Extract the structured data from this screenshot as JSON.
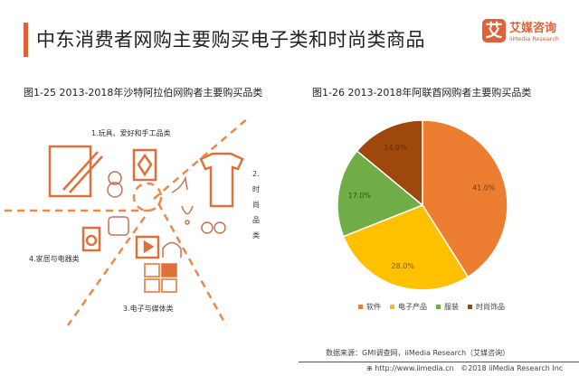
{
  "header": {
    "title": "中东消费者网购主要购买电子类和时尚类商品",
    "logo_mark": "艾",
    "logo_cn": "艾媒咨询",
    "logo_en": "iiMedia Research"
  },
  "left_figure": {
    "title": "图1-25  2013-2018年沙特阿拉伯网购者主要购买品类",
    "labels": [
      "1.玩具、爱好和手工品类",
      "2.时尚品类",
      "3.电子与媒体类",
      "4.家居与电器类"
    ],
    "vertical_label_chars": [
      "2.",
      "时",
      "尚",
      "品",
      "类"
    ],
    "accent": "#e0703a"
  },
  "chart_data": {
    "type": "pie",
    "title": "图1-26  2013-2018年阿联酋网购者主要购买品类",
    "categories": [
      "软件",
      "电子产品",
      "服装",
      "时尚饰品"
    ],
    "values": [
      41.0,
      28.0,
      17.0,
      14.0
    ],
    "labels": [
      "41.0%",
      "28.0%",
      "17.0%",
      "14.0%"
    ],
    "colors": [
      "#ed7d31",
      "#ffc000",
      "#70ad47",
      "#9e480e"
    ],
    "legend_position": "bottom"
  },
  "footer": {
    "source": "数据来源：GMI调查网，iiMedia Research（艾媒咨询）",
    "url": "http://www.iimedia.cn",
    "copyright": "©2018  iiMedia Research Inc"
  }
}
